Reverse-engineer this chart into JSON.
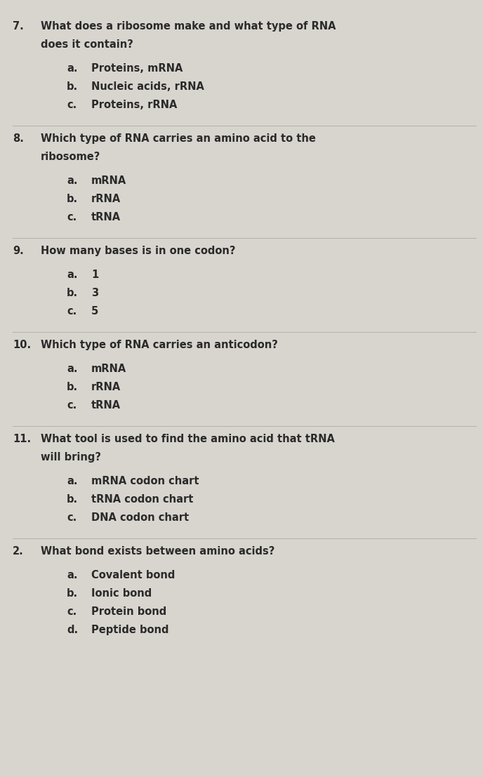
{
  "bg_color": "#d8d5cf",
  "text_color": "#2a2a2a",
  "font_family": "DejaVu Sans",
  "questions": [
    {
      "number": "7.",
      "question_lines": [
        "What does a ribosome make and what type of RNA",
        "does it contain?"
      ],
      "choices": [
        {
          "label": "a.",
          "text": "Proteins, mRNA"
        },
        {
          "label": "b.",
          "text": "Nucleic acids, rRNA"
        },
        {
          "label": "c.",
          "text": "Proteins, rRNA"
        }
      ]
    },
    {
      "number": "8.",
      "question_lines": [
        "Which type of RNA carries an amino acid to the",
        "ribosome?"
      ],
      "choices": [
        {
          "label": "a.",
          "text": "mRNA"
        },
        {
          "label": "b.",
          "text": "rRNA"
        },
        {
          "label": "c.",
          "text": "tRNA"
        }
      ]
    },
    {
      "number": "9.",
      "question_lines": [
        "How many bases is in one codon?"
      ],
      "choices": [
        {
          "label": "a.",
          "text": "1"
        },
        {
          "label": "b.",
          "text": "3"
        },
        {
          "label": "c.",
          "text": "5"
        }
      ]
    },
    {
      "number": "10.",
      "question_lines": [
        "Which type of RNA carries an anticodon?"
      ],
      "choices": [
        {
          "label": "a.",
          "text": "mRNA"
        },
        {
          "label": "b.",
          "text": "rRNA"
        },
        {
          "label": "c.",
          "text": "tRNA"
        }
      ]
    },
    {
      "number": "11.",
      "question_lines": [
        "What tool is used to find the amino acid that tRNA",
        "will bring?"
      ],
      "choices": [
        {
          "label": "a.",
          "text": "mRNA codon chart"
        },
        {
          "label": "b.",
          "text": "tRNA codon chart"
        },
        {
          "label": "c.",
          "text": "DNA codon chart"
        }
      ]
    },
    {
      "number": "2.",
      "question_lines": [
        "What bond exists between amino acids?"
      ],
      "choices": [
        {
          "label": "a.",
          "text": "Covalent bond"
        },
        {
          "label": "b.",
          "text": "Ionic bond"
        },
        {
          "label": "c.",
          "text": "Protein bond"
        },
        {
          "label": "d.",
          "text": "Peptide bond"
        }
      ]
    }
  ],
  "divider_color": "#999999",
  "q_fontsize": 10.5,
  "choice_fontsize": 10.5,
  "num_fontsize": 10.5
}
